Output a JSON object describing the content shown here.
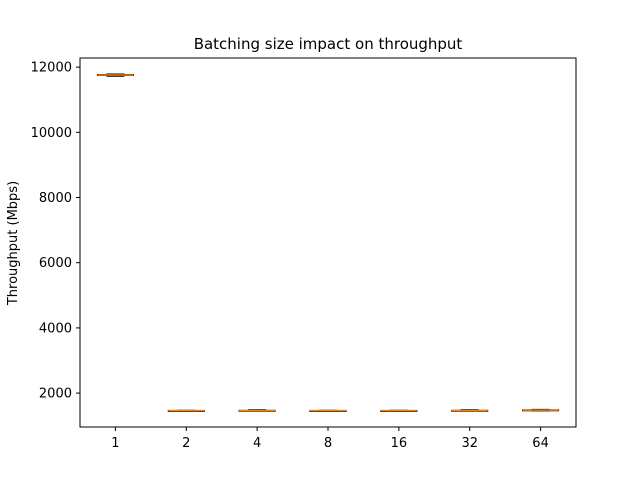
{
  "chart_data": {
    "type": "box",
    "title": "Batching size impact on throughput",
    "xlabel": "",
    "ylabel": "Throughput (Mbps)",
    "categories": [
      "1",
      "2",
      "4",
      "8",
      "16",
      "32",
      "64"
    ],
    "boxes": [
      {
        "category": "1",
        "min": 11720,
        "q1": 11745,
        "median": 11760,
        "q3": 11775,
        "max": 11790
      },
      {
        "category": "2",
        "min": 1450,
        "q1": 1458,
        "median": 1462,
        "q3": 1468,
        "max": 1475
      },
      {
        "category": "4",
        "min": 1450,
        "q1": 1458,
        "median": 1463,
        "q3": 1472,
        "max": 1490
      },
      {
        "category": "8",
        "min": 1450,
        "q1": 1458,
        "median": 1462,
        "q3": 1468,
        "max": 1475
      },
      {
        "category": "16",
        "min": 1450,
        "q1": 1458,
        "median": 1462,
        "q3": 1468,
        "max": 1475
      },
      {
        "category": "32",
        "min": 1450,
        "q1": 1458,
        "median": 1463,
        "q3": 1472,
        "max": 1490
      },
      {
        "category": "64",
        "min": 1460,
        "q1": 1470,
        "median": 1478,
        "q3": 1488,
        "max": 1500
      }
    ],
    "ylim": [
      960,
      12280
    ],
    "yticks": [
      2000,
      4000,
      6000,
      8000,
      10000,
      12000
    ],
    "grid": false,
    "colors": {
      "box": "#000000",
      "median": "#ff7f0e"
    }
  }
}
